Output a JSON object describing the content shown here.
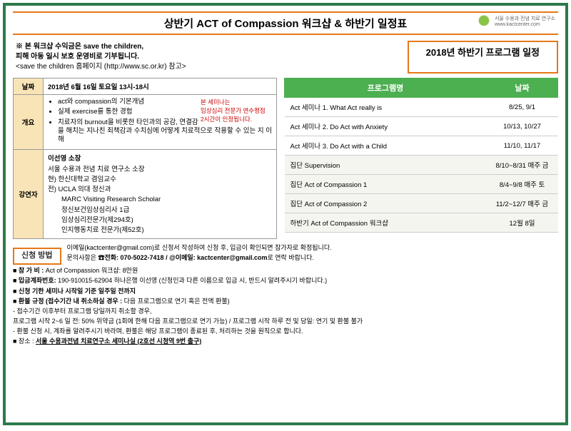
{
  "header": {
    "title": "상반기 ACT of Compassion 워크샵 & 하반기 일정표",
    "logo_text": "서울 수용과 전념 치료 연구소\nwww.kactcenter.com"
  },
  "note": {
    "line1": "※ 본 워크샵 수익금은 save the children,",
    "line2": "피해 아동 일시 보호 운영비로 기부됩니다.",
    "line3": "<save the children 홈페이지 (http://www.sc.or.kr) 참고>"
  },
  "schedule_title": "2018년 하반기 프로그램 일정",
  "left": {
    "date_label": "날짜",
    "date_value": "2018년 6월 16일 토요일 13시-18시",
    "overview_label": "개요",
    "overview_items": [
      "act와 compassion의 기본개념",
      "실제 exercise를 통한 경험",
      "치료자의 burnout을 비롯한 타인과의 공감, 연결감을 해치는 지나친 죄책감과 수치심에 어떻게 치료적으로 작용할 수 있는 지 이해"
    ],
    "red_note": "본 세미나는\n임상심리 전문가 연수평점\n2시간이 인정됩니다.",
    "speaker_label": "강연자",
    "speaker_name": "이선영 소장",
    "speaker_lines": [
      "서울 수용과 전념 치료 연구소 소장",
      "현) 한신대학교 겸임교수",
      "전) UCLA 의대 정신과",
      "　　MARC Visiting Research Scholar",
      "　　정신보건임상심리사 1급",
      "　　임상심리전문가(제294호)",
      "　　인지행동치료 전문가(제52호)"
    ]
  },
  "right": {
    "col1": "프로그램명",
    "col2": "날짜",
    "rows": [
      {
        "name": "Act 세미나 1. What Act really is",
        "date": "8/25, 9/1"
      },
      {
        "name": "Act 세미나 2. Do Act with Anxiety",
        "date": "10/13, 10/27"
      },
      {
        "name": "Act 세미나 3. Do Act with a Child",
        "date": "11/10, 11/17"
      },
      {
        "name": "집단 Supervision",
        "date": "8/10~8/31 매주 금"
      },
      {
        "name": "집단 Act of Compassion 1",
        "date": "8/4~9/8 매주 토"
      },
      {
        "name": "집단 Act of Compassion 2",
        "date": "11/2~12/7 매주 금"
      },
      {
        "name": "하반기 Act of Compassion 워크샵",
        "date": "12월 8일"
      }
    ]
  },
  "apply": {
    "label": "신청 방법",
    "intro1": "이메일(kactcenter@gmail.com)로 신청서 작성하여 신청 후, 입금이 확인되면 참가자로 확정됩니다.",
    "intro2": "문의사항은 ☎전화: 070-5022-7418 / @이메일: kactcenter@gmail.com로 연락 바랍니다.",
    "items": [
      "■ 참 가 비  :  Act of Compassion  워크샵: 8만원",
      "■ 입금계좌번호: 190-910015-62904 하나은행 이선영 (신청인과 다른 이름으로 입금 시, 반드시 알려주시기 바랍니다.)",
      "■ 신청 기한 세미나 시작일 기준 일주일 전까지",
      "■ 환불 규정 (접수기간 내 취소하실 경우 : 다음 프로그램으로 연기 혹은 전액 환불)",
      "- 접수기간 이후부터 프로그램 당일까지 취소할 경우,",
      "  프로그램 시작 2~6 일 전: 50% 위약금 (1회에 한해 다음 프로그램으로 연기 가능) / 프로그램 시작 하루 전 및 당일: 연기 및 환불 불가",
      "- 환불 신청 시, 계좌를 알려주시기 바라며, 환불은 해당 프로그램이 종료된 후, 처리하는 것을 원칙으로 합니다.",
      "■ 장소 : 서울 수용과전념 치료연구소 세미나실 (2호선 시청역 9번 출구)"
    ]
  },
  "colors": {
    "accent_green": "#2b7a4b",
    "accent_orange": "#e67817",
    "header_green": "#4caf50",
    "left_th_bg": "#f9e4b7"
  }
}
